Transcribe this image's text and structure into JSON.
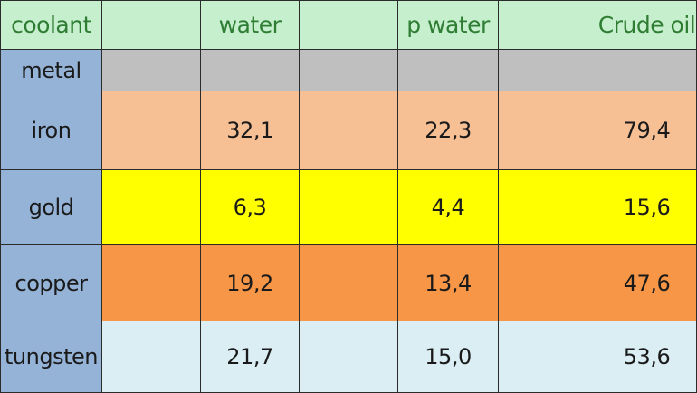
{
  "table": {
    "header": {
      "corner": "coolant",
      "columns": [
        "",
        "water",
        "",
        "p water",
        "",
        "Crude oil"
      ]
    },
    "metal_label": "metal",
    "rows": [
      {
        "metal": "iron",
        "cells": [
          "",
          "32,1",
          "",
          "22,3",
          "",
          "79,4"
        ]
      },
      {
        "metal": "gold",
        "cells": [
          "",
          "6,3",
          "",
          "4,4",
          "",
          "15,6"
        ]
      },
      {
        "metal": "copper",
        "cells": [
          "",
          "19,2",
          "",
          "13,4",
          "",
          "47,6"
        ]
      },
      {
        "metal": "tungsten",
        "cells": [
          "",
          "21,7",
          "",
          "15,0",
          "",
          "53,6"
        ]
      }
    ]
  },
  "colors": {
    "label_column": "#95b3d7",
    "header_row": "#c6efce",
    "header_text": "#2e7d32",
    "metal_row": "#bfbfbf",
    "iron_row": "#f7bf94",
    "gold_row": "#ffff00",
    "copper_row": "#f79646",
    "tungsten_row": "#daeef3"
  }
}
